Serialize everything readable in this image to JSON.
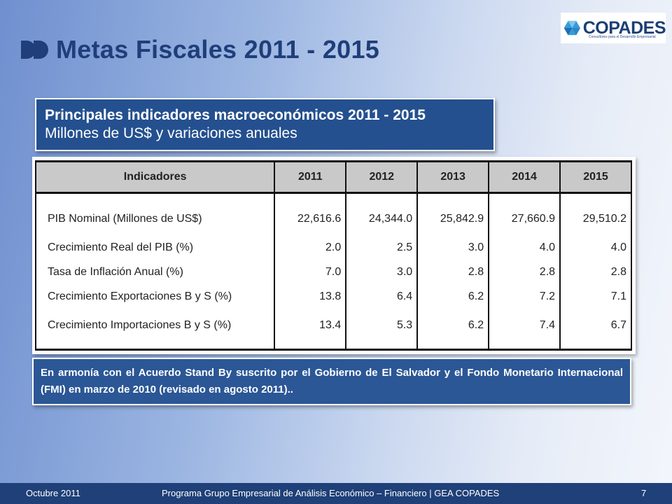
{
  "slide": {
    "title": "Metas Fiscales 2011 - 2015",
    "logo": {
      "name": "COPADES",
      "tagline": "Consultores para el Desarrollo Empresarial"
    },
    "subtitle": {
      "line1": "Principales indicadores macroeconómicos 2011 - 2015",
      "line2": "Millones de US$ y variaciones anuales"
    },
    "table": {
      "headers": [
        "Indicadores",
        "2011",
        "2012",
        "2013",
        "2014",
        "2015"
      ],
      "rows": [
        {
          "label": "PIB Nominal (Millones de US$)",
          "values": [
            "22,616.6",
            "24,344.0",
            "25,842.9",
            "27,660.9",
            "29,510.2"
          ]
        },
        {
          "label": "Crecimiento Real del PIB (%)",
          "values": [
            "2.0",
            "2.5",
            "3.0",
            "4.0",
            "4.0"
          ]
        },
        {
          "label": "Tasa de Inflación Anual (%)",
          "values": [
            "7.0",
            "3.0",
            "2.8",
            "2.8",
            "2.8"
          ]
        },
        {
          "label": "Crecimiento Exportaciones B y S (%)",
          "values": [
            "13.8",
            "6.4",
            "6.2",
            "7.2",
            "7.1"
          ]
        },
        {
          "label": "Crecimiento Importaciones B y S (%)",
          "values": [
            "13.4",
            "5.3",
            "6.2",
            "7.4",
            "6.7"
          ]
        }
      ]
    },
    "note": "En armonía con el Acuerdo Stand By suscrito por el Gobierno de El Salvador y el Fondo Monetario Internacional (FMI) en marzo de 2010 (revisado en agosto 2011)..",
    "footer": {
      "date": "Octubre 2011",
      "program": "Programa Grupo Empresarial de Análisis Económico – Financiero | GEA COPADES",
      "page": "7"
    },
    "colors": {
      "title": "#1f3e7a",
      "box_blue": "#24508f",
      "footer_blue": "#1f4078",
      "header_gray": "#c9c9c9"
    },
    "icons": [
      "double-chevron-bullet-icon",
      "copades-logo-icon"
    ]
  }
}
